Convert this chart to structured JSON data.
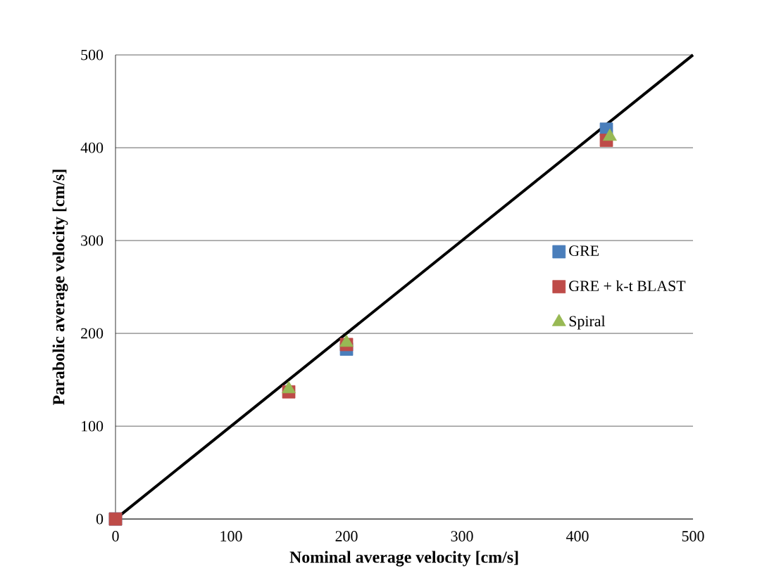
{
  "chart_data": {
    "type": "scatter",
    "xlabel": "Nominal average velocity [cm/s]",
    "ylabel": "Parabolic average velocity [cm/s]",
    "xlim": [
      0,
      500
    ],
    "ylim": [
      0,
      500
    ],
    "xticks": [
      0,
      100,
      200,
      300,
      400,
      500
    ],
    "yticks": [
      0,
      100,
      200,
      300,
      400,
      500
    ],
    "grid": "y",
    "legend": "right",
    "series": [
      {
        "name": "GRE",
        "color": "#4a7ebb",
        "marker": "square",
        "x": [
          0,
          150,
          200,
          425
        ],
        "values": [
          0,
          null,
          183,
          420
        ]
      },
      {
        "name": "GRE + k-t BLAST",
        "color": "#be4b48",
        "marker": "square",
        "x": [
          0,
          150,
          200,
          425
        ],
        "values": [
          0,
          137,
          188,
          408
        ]
      },
      {
        "name": "Spiral",
        "color": "#98b954",
        "marker": "triangle",
        "x": [
          150,
          200,
          428
        ],
        "values": [
          140,
          190,
          412
        ]
      },
      {
        "type": "line",
        "color": "#000000",
        "marker": "none",
        "x": [
          0,
          500
        ],
        "values": [
          0,
          500
        ]
      }
    ]
  }
}
